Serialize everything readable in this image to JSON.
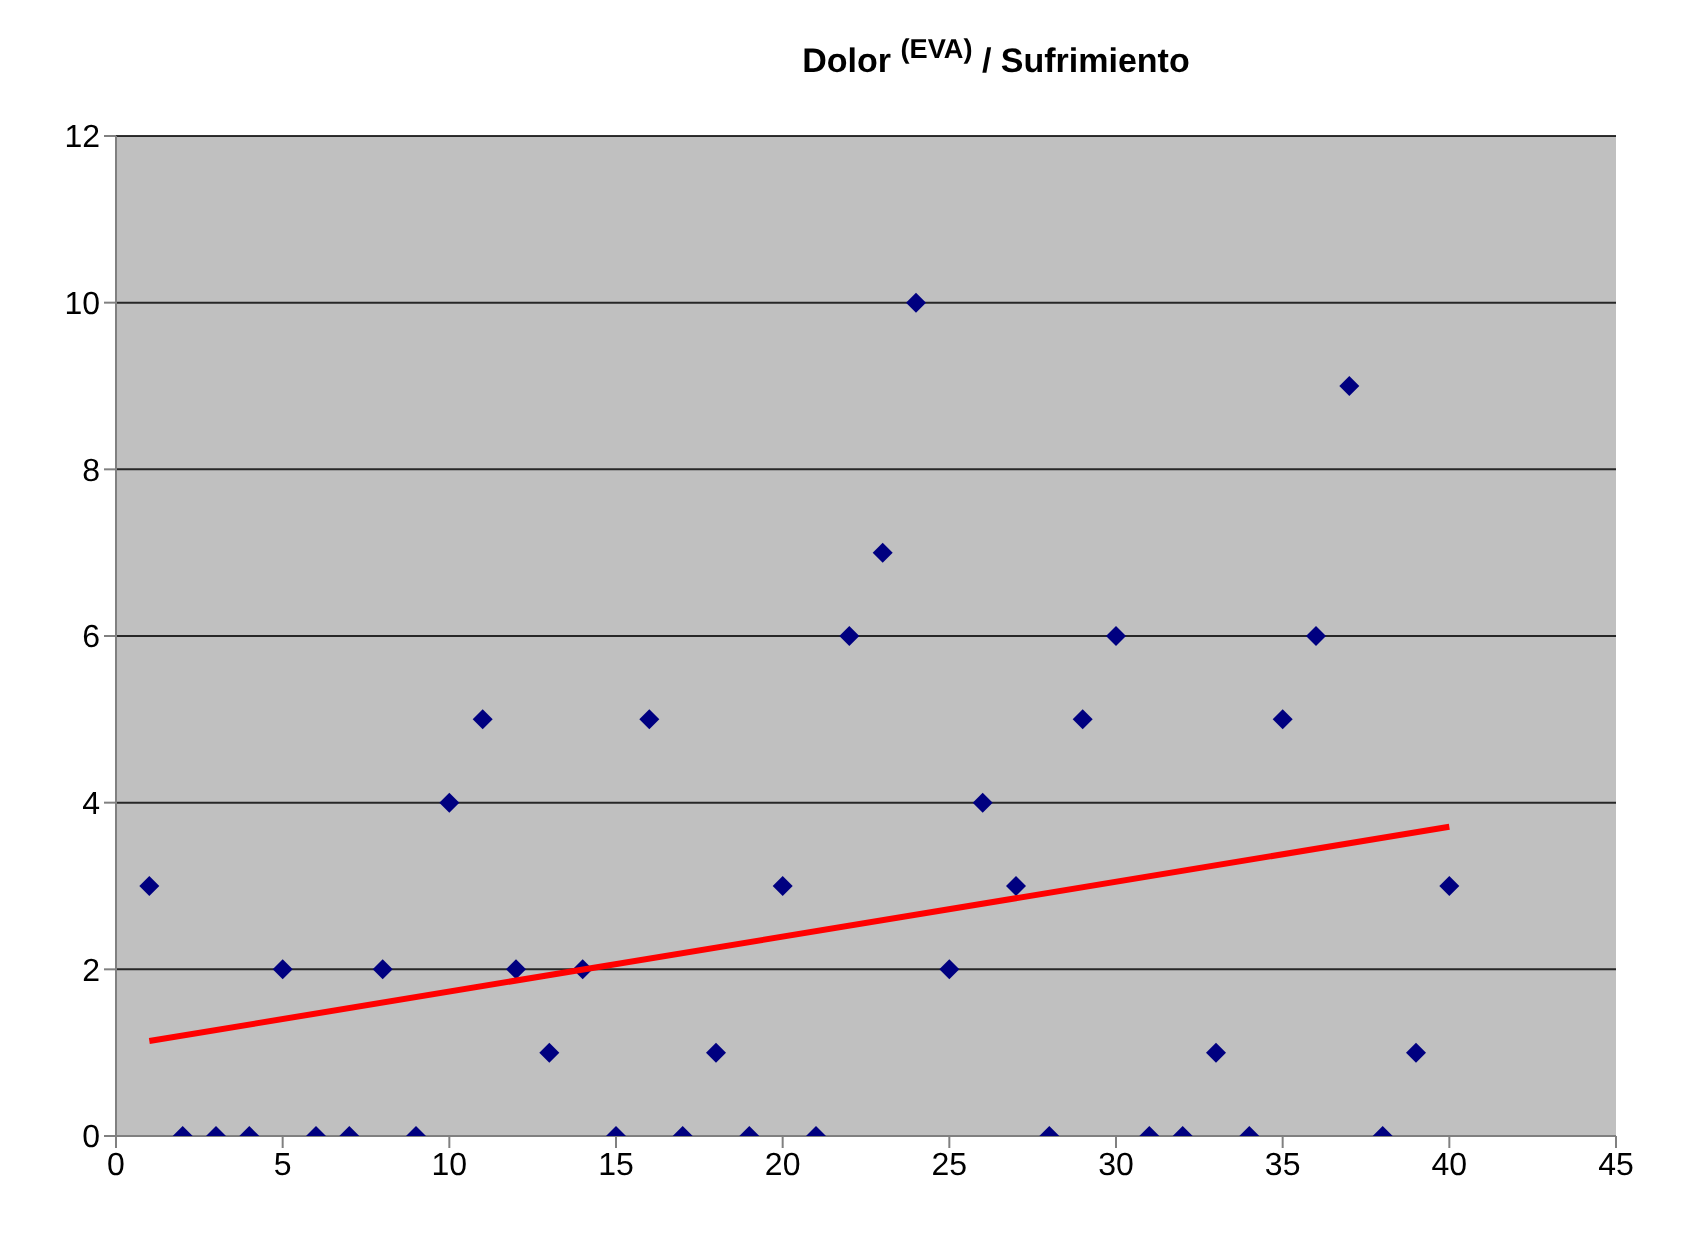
{
  "chart_data": {
    "type": "scatter",
    "title": "Dolor $^{(EVA)}$ / Sufrimiento",
    "xlim": [
      0,
      45
    ],
    "xticks": [
      0,
      5,
      10,
      15,
      20,
      25,
      30,
      35,
      40,
      45
    ],
    "ylim": [
      0,
      12
    ],
    "yticks": [
      0,
      2,
      4,
      6,
      8,
      10,
      12
    ],
    "grid": "y",
    "legend": false,
    "series": [
      {
        "type": "scatter",
        "marker": "diamond",
        "color": "#000080",
        "x": [
          1,
          2,
          3,
          4,
          5,
          6,
          7,
          8,
          9,
          10,
          11,
          12,
          13,
          14,
          15,
          16,
          17,
          18,
          19,
          20,
          21,
          22,
          23,
          24,
          25,
          26,
          27,
          28,
          29,
          30,
          31,
          32,
          33,
          34,
          35,
          36,
          37,
          38,
          39,
          40
        ],
        "values": [
          3,
          0,
          0,
          0,
          2,
          0,
          0,
          2,
          0,
          4,
          5,
          2,
          1,
          2,
          0,
          5,
          0,
          1,
          0,
          3,
          0,
          6,
          7,
          10,
          2,
          4,
          3,
          0,
          5,
          6,
          0,
          0,
          1,
          0,
          5,
          6,
          9,
          0,
          1,
          3
        ]
      },
      {
        "type": "line",
        "color": "#ff0000",
        "x": [
          1,
          40
        ],
        "values": [
          1.14,
          3.71
        ]
      }
    ]
  }
}
